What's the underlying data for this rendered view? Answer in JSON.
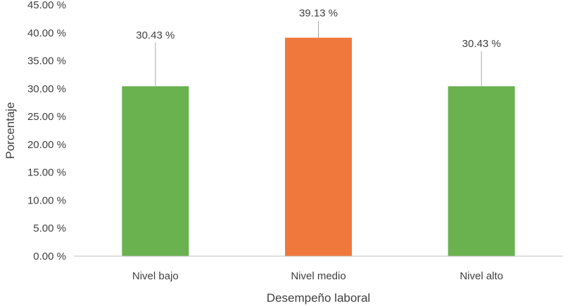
{
  "chart_data": {
    "type": "bar",
    "title": "",
    "xlabel": "Desempeño laboral",
    "ylabel": "Porcentaje",
    "categories": [
      "Nivel bajo",
      "Nivel medio",
      "Nivel alto"
    ],
    "values": [
      30.43,
      39.13,
      30.43
    ],
    "data_labels": [
      "30.43 %",
      "39.13 %",
      "30.43 %"
    ],
    "bar_colors": [
      "#6ab150",
      "#f0783d",
      "#6ab150"
    ],
    "ylim": [
      0,
      45
    ],
    "yticks": [
      0,
      5,
      10,
      15,
      20,
      25,
      30,
      35,
      40,
      45
    ],
    "ytick_labels": [
      "0.00 %",
      "5.00 %",
      "10.00 %",
      "15.00 %",
      "20.00 %",
      "25.00 %",
      "30.00 %",
      "35.00 %",
      "40.00 %",
      "45.00 %"
    ],
    "grid": false,
    "legend": "none"
  }
}
